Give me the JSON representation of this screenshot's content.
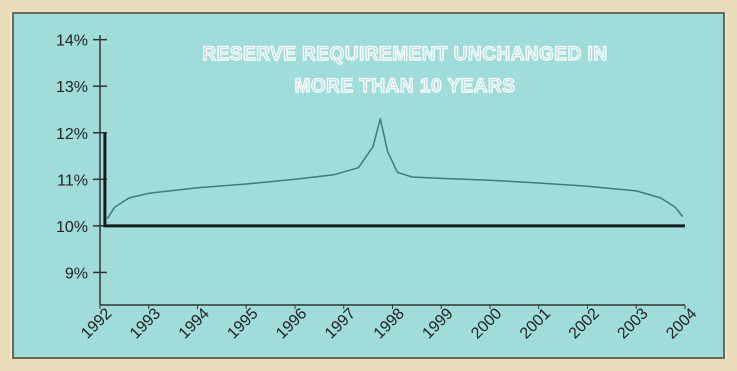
{
  "chart_data": {
    "type": "line",
    "title_lines": [
      "RESERVE REQUIREMENT UNCHANGED IN",
      "MORE THAN 10 YEARS"
    ],
    "xlabel": "",
    "ylabel": "",
    "x_ticks": [
      "1992",
      "1993",
      "1994",
      "1995",
      "1996",
      "1997",
      "1998",
      "1999",
      "2000",
      "2001",
      "2002",
      "2003",
      "2004"
    ],
    "y_ticks": [
      "9%",
      "10%",
      "11%",
      "12%",
      "13%",
      "14%"
    ],
    "ylim": [
      8.3,
      14.1
    ],
    "xlim": [
      1992,
      2004
    ],
    "grid": false,
    "series": [
      {
        "x": [
          1992.15,
          1992.3,
          1992.6,
          1993.0,
          1994.0,
          1995.0,
          1996.0,
          1996.8,
          1997.3,
          1997.6,
          1997.75,
          1997.9,
          1998.1,
          1998.4,
          1999.0,
          2000.0,
          2001.0,
          2002.0,
          2003.0,
          2003.5,
          2003.8,
          2003.95
        ],
        "y": [
          10.15,
          10.4,
          10.6,
          10.7,
          10.82,
          10.9,
          11.0,
          11.1,
          11.25,
          11.7,
          12.3,
          11.6,
          11.15,
          11.05,
          11.02,
          10.98,
          10.92,
          10.85,
          10.75,
          10.6,
          10.4,
          10.2
        ]
      },
      {
        "x": [
          1992.1,
          1992.1,
          2004.0
        ],
        "y": [
          12.0,
          10.0,
          10.0
        ]
      }
    ],
    "reference_line": {
      "y": 10.0,
      "x_from": 1992.0,
      "x_to": 1992.1
    }
  }
}
